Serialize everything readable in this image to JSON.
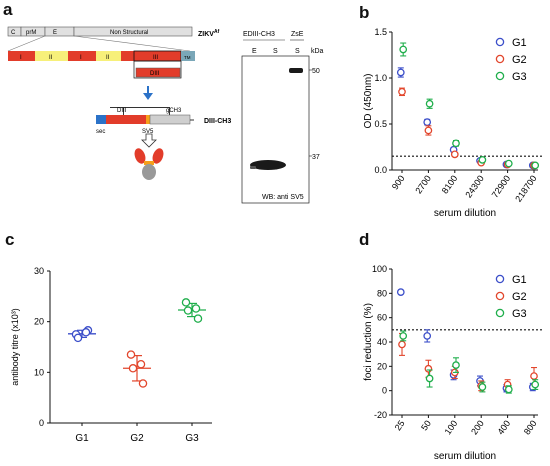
{
  "panels": {
    "a": {
      "letter": "a",
      "gene_bar": {
        "segments": [
          "C",
          "prM",
          "E",
          "Non Structural"
        ],
        "label": "ZIKV",
        "label_sup": "Af"
      },
      "domain_bar": {
        "segments": [
          "I",
          "II",
          "I",
          "II",
          "III"
        ],
        "tm_label": "TM"
      },
      "diii_box_label": "DIII",
      "construct": {
        "parts": [
          "sec",
          "DIII",
          "SV5",
          "gCH3"
        ],
        "label": "DIII-CH3"
      },
      "blot": {
        "top_group": "EDIII-CH3",
        "top_right": "ZsE",
        "lanes": [
          "E",
          "S",
          "S"
        ],
        "kda_header": "kDa",
        "markers": [
          "50",
          "37"
        ],
        "footer": "WB: anti SV5"
      }
    },
    "b": {
      "letter": "b"
    },
    "c": {
      "letter": "c"
    },
    "d": {
      "letter": "d"
    }
  },
  "colors": {
    "G1": "#3b4ec9",
    "G2": "#e2462c",
    "G3": "#1fae4b"
  },
  "chart_data": [
    {
      "id": "b",
      "type": "scatter",
      "ylabel": "OD (450nm)",
      "xlabel": "serum dilution",
      "categories": [
        "900",
        "2700",
        "8100",
        "24300",
        "72900",
        "218700"
      ],
      "ylim": [
        0,
        1.5
      ],
      "yticks": [
        "0.0",
        "0.5",
        "1.0",
        "1.5"
      ],
      "series": [
        {
          "name": "G1",
          "values": [
            1.06,
            0.52,
            0.22,
            0.1,
            0.06,
            0.05
          ],
          "err": [
            0.05,
            0.03,
            0.02,
            0.01,
            0.01,
            0.01
          ]
        },
        {
          "name": "G2",
          "values": [
            0.85,
            0.43,
            0.17,
            0.08,
            0.06,
            0.05
          ],
          "err": [
            0.04,
            0.05,
            0.02,
            0.01,
            0.01,
            0.01
          ]
        },
        {
          "name": "G3",
          "values": [
            1.31,
            0.72,
            0.29,
            0.11,
            0.07,
            0.05
          ],
          "err": [
            0.07,
            0.05,
            0.03,
            0.02,
            0.01,
            0.01
          ]
        }
      ],
      "threshold": 0.15,
      "legend": "top-right"
    },
    {
      "id": "c",
      "type": "scatter",
      "ylabel": "antibody titre (x10³)",
      "categories": [
        "G1",
        "G2",
        "G3"
      ],
      "ylim": [
        0,
        30
      ],
      "yticks": [
        "0",
        "10",
        "20",
        "30"
      ],
      "series": [
        {
          "name": "G1",
          "points": [
            17.5,
            18.3,
            16.8,
            17.9
          ],
          "mean": 17.6,
          "sd": 0.7
        },
        {
          "name": "G2",
          "points": [
            13.5,
            7.8,
            10.8,
            11.6
          ],
          "mean": 10.8,
          "sd": 2.5
        },
        {
          "name": "G3",
          "points": [
            23.8,
            20.6,
            22.2,
            22.6
          ],
          "mean": 22.3,
          "sd": 1.3
        }
      ]
    },
    {
      "id": "d",
      "type": "scatter",
      "ylabel": "foci reduction (%)",
      "xlabel": "serum dilution",
      "categories": [
        "25",
        "50",
        "100",
        "200",
        "400",
        "800"
      ],
      "ylim": [
        -20,
        100
      ],
      "yticks": [
        "-20",
        "0",
        "20",
        "40",
        "60",
        "80",
        "100"
      ],
      "series": [
        {
          "name": "G1",
          "values": [
            81,
            45,
            13,
            8,
            2,
            3
          ],
          "err": [
            0,
            5,
            4,
            4,
            3,
            3
          ]
        },
        {
          "name": "G2",
          "values": [
            38,
            18,
            15,
            4,
            5,
            12
          ],
          "err": [
            9,
            7,
            5,
            4,
            4,
            7
          ]
        },
        {
          "name": "G3",
          "values": [
            45,
            10,
            21,
            3,
            1,
            5
          ],
          "err": [
            4,
            7,
            6,
            4,
            3,
            4
          ]
        }
      ],
      "threshold": 50,
      "legend": "top-right"
    }
  ]
}
